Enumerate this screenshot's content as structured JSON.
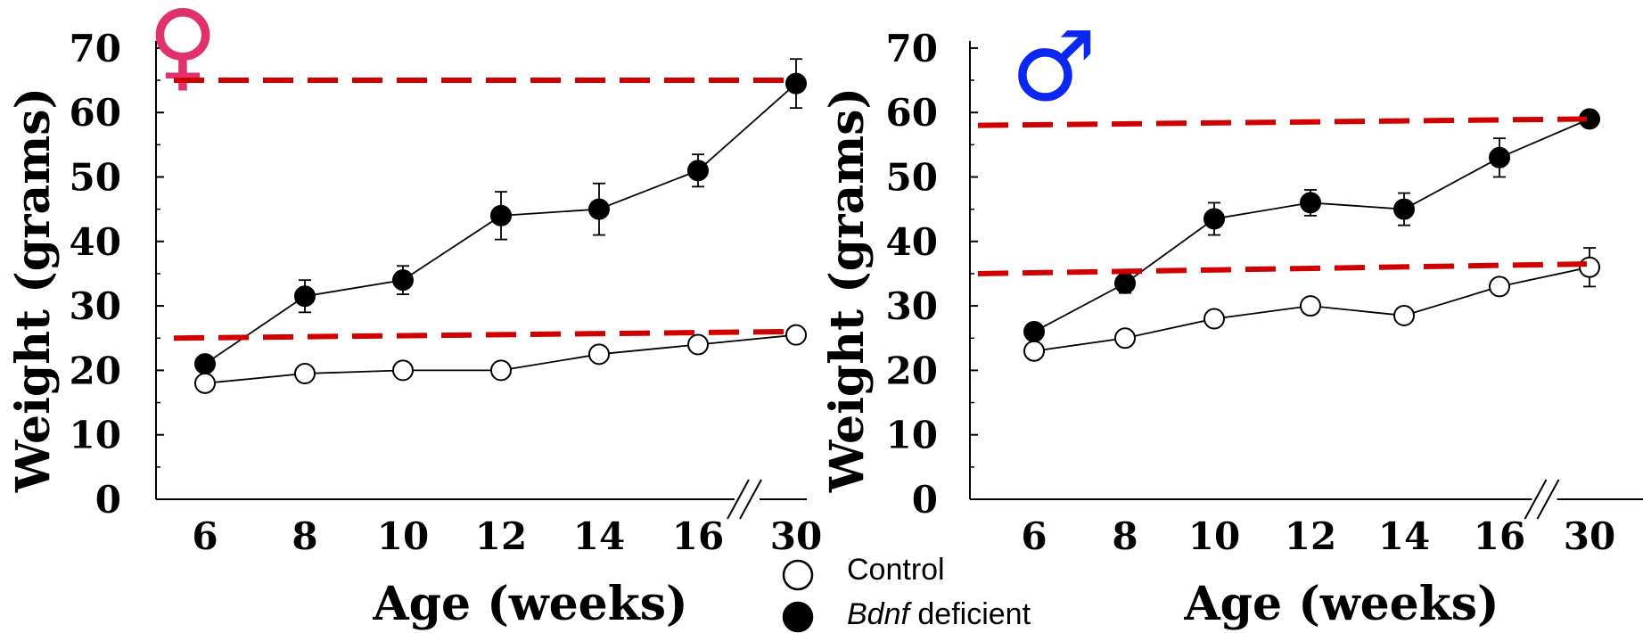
{
  "colors": {
    "reference_line": "#d00000",
    "female_symbol": "#e0306e",
    "male_symbol": "#0a28f0",
    "control_fill": "#ffffff",
    "deficient_fill": "#000000"
  },
  "legend": {
    "control_label": "Control",
    "deficient_label_italic": "Bdnf",
    "deficient_label_rest": " deficient"
  },
  "chart_data": [
    {
      "type": "line",
      "panel": "female",
      "symbol": "♀",
      "icon": "female-symbol-icon",
      "xlabel": "Age (weeks)",
      "ylabel": "Weight (grams)",
      "ylim": [
        0,
        70
      ],
      "yticks": [
        0,
        10,
        20,
        30,
        40,
        50,
        60,
        70
      ],
      "categories": [
        "6",
        "8",
        "10",
        "12",
        "14",
        "16",
        "30"
      ],
      "axis_break": "between 16 and 30",
      "series": [
        {
          "name": "Control",
          "marker": "open-circle",
          "values": [
            18,
            19.5,
            20,
            20,
            22.5,
            24,
            25.5
          ]
        },
        {
          "name": "Bdnf deficient",
          "marker": "filled-circle",
          "values": [
            21,
            31.5,
            34,
            44,
            45,
            51,
            64.5
          ],
          "error": [
            1,
            2.5,
            2.2,
            3.7,
            4,
            2.5,
            3.8
          ]
        }
      ],
      "reference_lines": [
        {
          "y_start": 65,
          "y_end": 65
        },
        {
          "y_start": 25,
          "y_end": 26
        }
      ]
    },
    {
      "type": "line",
      "panel": "male",
      "symbol": "♂",
      "icon": "male-symbol-icon",
      "xlabel": "Age (weeks)",
      "ylabel": "Weight (grams)",
      "ylim": [
        0,
        70
      ],
      "yticks": [
        0,
        10,
        20,
        30,
        40,
        50,
        60,
        70
      ],
      "categories": [
        "6",
        "8",
        "10",
        "12",
        "14",
        "16",
        "30"
      ],
      "axis_break": "between 16 and 30",
      "series": [
        {
          "name": "Control",
          "marker": "open-circle",
          "values": [
            23,
            25,
            28,
            30,
            28.5,
            33,
            36
          ],
          "error": [
            0,
            0,
            0,
            0,
            0,
            0,
            3
          ]
        },
        {
          "name": "Bdnf deficient",
          "marker": "filled-circle",
          "values": [
            26,
            33.5,
            43.5,
            46,
            45,
            53,
            59
          ],
          "error": [
            0,
            1.5,
            2.5,
            2,
            2.5,
            3,
            0
          ]
        }
      ],
      "reference_lines": [
        {
          "y_start": 58,
          "y_end": 59
        },
        {
          "y_start": 35,
          "y_end": 36.5
        }
      ]
    }
  ]
}
